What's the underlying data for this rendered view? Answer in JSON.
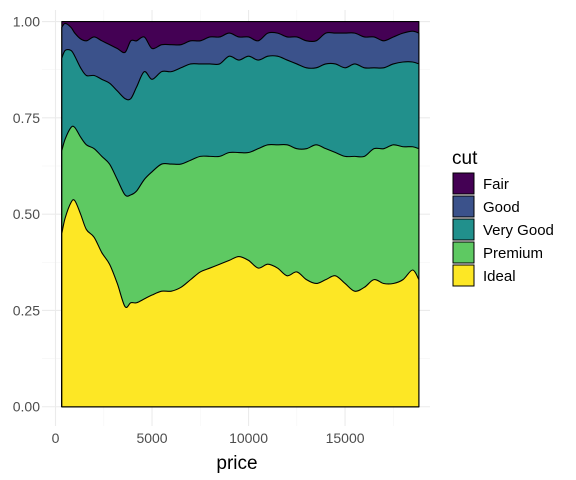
{
  "chart_data": {
    "type": "area",
    "title": "",
    "xlabel": "price",
    "ylabel": "",
    "xlim": [
      -700,
      19400
    ],
    "ylim": [
      -0.05,
      1.03
    ],
    "x_ticks": [
      0,
      5000,
      10000,
      15000
    ],
    "x_tick_labels": [
      "0",
      "5000",
      "10000",
      "15000"
    ],
    "x_minor_ticks": [
      2500,
      7500,
      12500,
      17500
    ],
    "y_ticks": [
      0,
      0.25,
      0.5,
      0.75,
      1.0
    ],
    "y_tick_labels": [
      "0.00",
      "0.25",
      "0.50",
      "0.75",
      "1.00"
    ],
    "y_minor_ticks": [
      0.125,
      0.375,
      0.625,
      0.875
    ],
    "grid": true,
    "stacked_proportion": true,
    "legend": {
      "title": "cut",
      "position": "right"
    },
    "x": [
      326,
      500,
      800,
      1000,
      1300,
      1600,
      2000,
      2400,
      2800,
      3200,
      3600,
      3900,
      4200,
      4600,
      5000,
      5500,
      6000,
      6500,
      7000,
      7500,
      8000,
      8500,
      9000,
      9500,
      10000,
      10500,
      11000,
      11500,
      12000,
      12500,
      13000,
      13500,
      14000,
      14500,
      15000,
      15500,
      16000,
      16500,
      17000,
      17500,
      18000,
      18500,
      18823
    ],
    "series": [
      {
        "name": "Ideal",
        "color": "#FDE725",
        "values": [
          0.45,
          0.49,
          0.53,
          0.535,
          0.5,
          0.46,
          0.44,
          0.4,
          0.37,
          0.32,
          0.26,
          0.27,
          0.27,
          0.28,
          0.29,
          0.3,
          0.3,
          0.31,
          0.33,
          0.35,
          0.36,
          0.37,
          0.38,
          0.39,
          0.38,
          0.36,
          0.37,
          0.36,
          0.34,
          0.35,
          0.33,
          0.32,
          0.33,
          0.34,
          0.32,
          0.3,
          0.31,
          0.33,
          0.32,
          0.32,
          0.33,
          0.355,
          0.33
        ]
      },
      {
        "name": "Premium",
        "color": "#5EC962",
        "values": [
          0.215,
          0.205,
          0.195,
          0.19,
          0.2,
          0.22,
          0.23,
          0.25,
          0.26,
          0.27,
          0.29,
          0.28,
          0.29,
          0.31,
          0.32,
          0.33,
          0.33,
          0.32,
          0.31,
          0.3,
          0.29,
          0.28,
          0.28,
          0.27,
          0.28,
          0.31,
          0.31,
          0.32,
          0.34,
          0.32,
          0.34,
          0.36,
          0.34,
          0.32,
          0.33,
          0.35,
          0.34,
          0.34,
          0.35,
          0.36,
          0.345,
          0.32,
          0.34
        ]
      },
      {
        "name": "Very Good",
        "color": "#21908C",
        "values": [
          0.24,
          0.23,
          0.2,
          0.185,
          0.18,
          0.18,
          0.19,
          0.2,
          0.21,
          0.23,
          0.25,
          0.25,
          0.27,
          0.28,
          0.24,
          0.24,
          0.24,
          0.25,
          0.25,
          0.24,
          0.24,
          0.24,
          0.25,
          0.24,
          0.25,
          0.23,
          0.23,
          0.23,
          0.22,
          0.22,
          0.21,
          0.2,
          0.22,
          0.23,
          0.23,
          0.24,
          0.23,
          0.21,
          0.21,
          0.21,
          0.22,
          0.22,
          0.22
        ]
      },
      {
        "name": "Good",
        "color": "#3B528B",
        "values": [
          0.08,
          0.07,
          0.06,
          0.06,
          0.075,
          0.09,
          0.1,
          0.1,
          0.1,
          0.11,
          0.12,
          0.15,
          0.12,
          0.09,
          0.08,
          0.07,
          0.07,
          0.06,
          0.06,
          0.06,
          0.07,
          0.07,
          0.06,
          0.06,
          0.05,
          0.05,
          0.06,
          0.06,
          0.06,
          0.07,
          0.07,
          0.07,
          0.08,
          0.08,
          0.09,
          0.08,
          0.08,
          0.08,
          0.07,
          0.07,
          0.075,
          0.08,
          0.08
        ]
      },
      {
        "name": "Fair",
        "color": "#440154",
        "values": [
          0.015,
          0.005,
          0.015,
          0.03,
          0.045,
          0.05,
          0.04,
          0.05,
          0.06,
          0.07,
          0.08,
          0.05,
          0.05,
          0.04,
          0.07,
          0.06,
          0.06,
          0.06,
          0.05,
          0.05,
          0.04,
          0.04,
          0.03,
          0.04,
          0.04,
          0.05,
          0.03,
          0.03,
          0.04,
          0.04,
          0.05,
          0.05,
          0.03,
          0.03,
          0.03,
          0.03,
          0.04,
          0.04,
          0.05,
          0.04,
          0.03,
          0.025,
          0.03
        ]
      }
    ]
  }
}
